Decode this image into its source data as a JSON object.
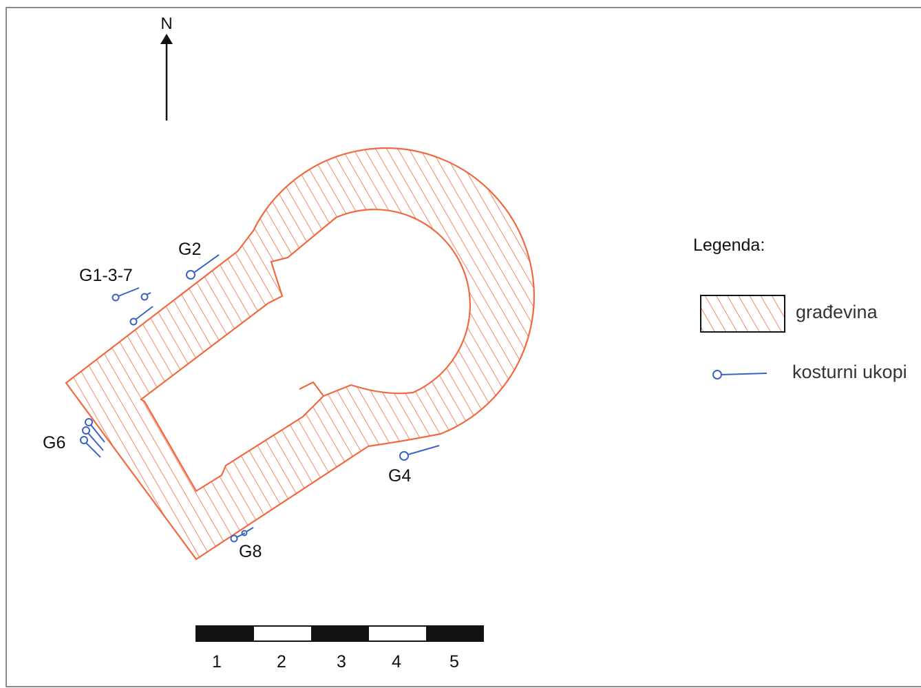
{
  "north_arrow": {
    "label": "N"
  },
  "graves": [
    {
      "label": "G1-3-7"
    },
    {
      "label": "G2"
    },
    {
      "label": "G6"
    },
    {
      "label": "G4"
    },
    {
      "label": "G8"
    }
  ],
  "legend": {
    "title": "Legenda:",
    "items": [
      {
        "label": "građevina",
        "symbol": "hatched-area"
      },
      {
        "label": "kosturni ukopi",
        "symbol": "grave-symbol"
      }
    ]
  },
  "scale_bar": {
    "ticks": [
      "1",
      "2",
      "3",
      "4",
      "5"
    ]
  },
  "colors": {
    "building": "#f2683e",
    "graves": "#3a62c4",
    "text": "#111111",
    "frame": "#555555"
  }
}
